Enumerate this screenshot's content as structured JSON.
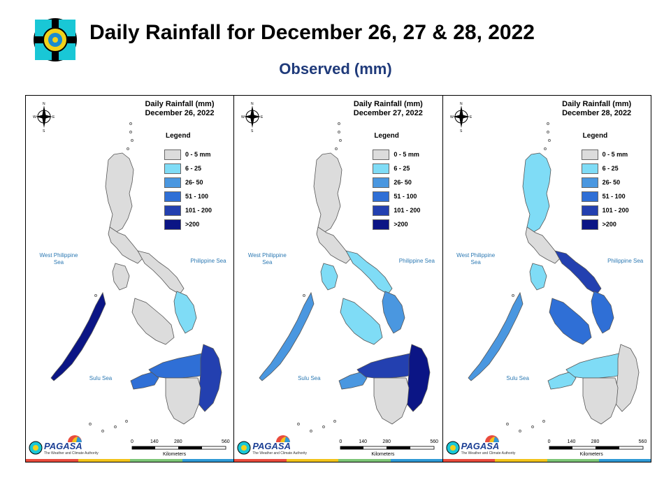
{
  "header": {
    "title": "Daily Rainfall for December 26, 27 & 28, 2022",
    "subtitle": "Observed (mm)"
  },
  "legend": {
    "title": "Legend",
    "items": [
      {
        "label": "0 - 5 mm",
        "color": "#dcdcdc"
      },
      {
        "label": "6 - 25",
        "color": "#7fdcf6"
      },
      {
        "label": "26- 50",
        "color": "#4a97e0"
      },
      {
        "label": "51 - 100",
        "color": "#2f6fd6"
      },
      {
        "label": "101 - 200",
        "color": "#2340b0"
      },
      {
        "label": ">200",
        "color": "#0b1585"
      }
    ]
  },
  "map_labels": {
    "west_sea": "West Philippine Sea",
    "east_sea": "Philippine Sea",
    "south_sea": "Sulu Sea"
  },
  "scale": {
    "ticks": [
      "0",
      "140",
      "280",
      "560"
    ],
    "unit": "Kilometers"
  },
  "branding": {
    "agency": "PAGASA",
    "tagline": "The Weather and Climate Authority"
  },
  "panels": [
    {
      "heading": "Daily Rainfall (mm)",
      "date": "December 26, 2022",
      "regions": {
        "north_luzon": "#dcdcdc",
        "central_luzon": "#dcdcdc",
        "bicol": "#dcdcdc",
        "mindoro": "#dcdcdc",
        "palawan": "#0b1585",
        "visayas": "#dcdcdc",
        "samar": "#7fdcf6",
        "mindanao_north": "#2f6fd6",
        "mindanao_east": "#2340b0",
        "mindanao_south": "#dcdcdc",
        "zamboanga": "#2f6fd6"
      }
    },
    {
      "heading": "Daily Rainfall (mm)",
      "date": "December 27, 2022",
      "regions": {
        "north_luzon": "#dcdcdc",
        "central_luzon": "#dcdcdc",
        "bicol": "#7fdcf6",
        "mindoro": "#7fdcf6",
        "palawan": "#4a97e0",
        "visayas": "#7fdcf6",
        "samar": "#4a97e0",
        "mindanao_north": "#2340b0",
        "mindanao_east": "#0b1585",
        "mindanao_south": "#dcdcdc",
        "zamboanga": "#4a97e0"
      }
    },
    {
      "heading": "Daily Rainfall (mm)",
      "date": "December 28, 2022",
      "regions": {
        "north_luzon": "#7fdcf6",
        "central_luzon": "#dcdcdc",
        "bicol": "#2340b0",
        "mindoro": "#7fdcf6",
        "palawan": "#4a97e0",
        "visayas": "#2f6fd6",
        "samar": "#2f6fd6",
        "mindanao_north": "#7fdcf6",
        "mindanao_east": "#dcdcdc",
        "mindanao_south": "#dcdcdc",
        "zamboanga": "#7fdcf6"
      }
    }
  ]
}
